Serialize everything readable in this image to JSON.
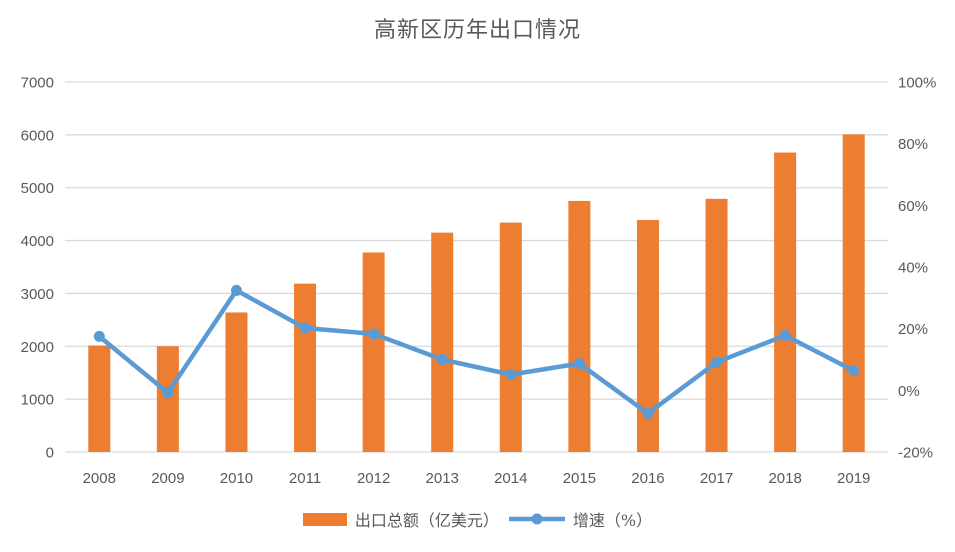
{
  "title": "高新区历年出口情况",
  "chart_data": {
    "type": "bar",
    "subtype": "combo-bar-line",
    "categories": [
      "2008",
      "2009",
      "2010",
      "2011",
      "2012",
      "2013",
      "2014",
      "2015",
      "2016",
      "2017",
      "2018",
      "2019"
    ],
    "series": [
      {
        "name": "出口总额（亿美元）",
        "type": "bar",
        "axis": "left",
        "values": [
          2015,
          2000,
          2640,
          3185,
          3775,
          4150,
          4340,
          4750,
          4390,
          4790,
          5665,
          6010
        ]
      },
      {
        "name": "增速（%）",
        "type": "line",
        "axis": "right",
        "values": [
          17.5,
          -0.8,
          32.4,
          20.2,
          18.3,
          10.0,
          5.1,
          8.7,
          -7.5,
          9.1,
          17.8,
          6.4
        ]
      }
    ],
    "left_axis": {
      "min": 0,
      "max": 7000,
      "step": 1000,
      "ticks": [
        "0",
        "1000",
        "2000",
        "3000",
        "4000",
        "5000",
        "6000",
        "7000"
      ]
    },
    "right_axis": {
      "min": -20,
      "max": 100,
      "step": 20,
      "ticks": [
        "-20%",
        "0%",
        "20%",
        "40%",
        "60%",
        "80%",
        "100%"
      ]
    },
    "grid": "horizontal",
    "legend_position": "bottom"
  },
  "colors": {
    "bar": "#ED7D31",
    "line": "#5B9BD5",
    "grid": "#D9D9D9",
    "axis_text": "#595959",
    "title_text": "#595959",
    "background": "#FFFFFF"
  }
}
